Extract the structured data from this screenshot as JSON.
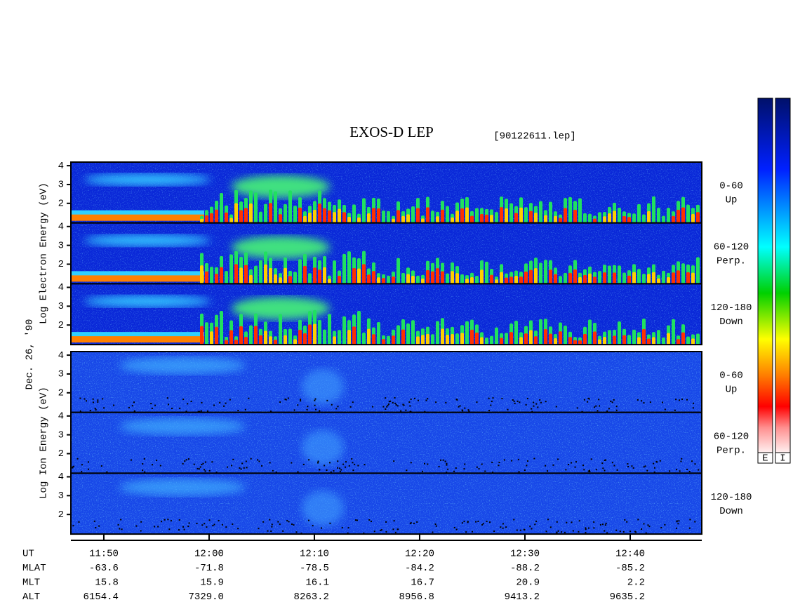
{
  "title": "EXOS-D LEP",
  "file": "[90122611.lep]",
  "date": "Dec. 26, '90",
  "chart_data": {
    "type": "spectrogram",
    "xlim": [
      706.87,
      766.8
    ],
    "xticks": [
      {
        "value": 710,
        "label": "11:50"
      },
      {
        "value": 720,
        "label": "12:00"
      },
      {
        "value": 730,
        "label": "12:10"
      },
      {
        "value": 740,
        "label": "12:20"
      },
      {
        "value": 750,
        "label": "12:30"
      },
      {
        "value": 760,
        "label": "12:40"
      }
    ],
    "ylim": [
      0.96,
      4.19
    ],
    "yticks": [
      2,
      3,
      4
    ],
    "groups": [
      {
        "y_label": "Log Electron Energy (eV)",
        "panels": [
          {
            "label_lines": [
              "0-60",
              "Up"
            ]
          },
          {
            "label_lines": [
              "60-120",
              "Perp."
            ]
          },
          {
            "label_lines": [
              "120-180",
              "Down"
            ]
          }
        ]
      },
      {
        "y_label": "Log Ion Energy (eV)",
        "panels": [
          {
            "label_lines": [
              "0-60",
              "Up"
            ]
          },
          {
            "label_lines": [
              "60-120",
              "Perp."
            ]
          },
          {
            "label_lines": [
              "120-180",
              "Down"
            ]
          }
        ]
      }
    ],
    "colorbars": [
      {
        "label": "E"
      },
      {
        "label": "I"
      }
    ]
  },
  "ephemeris": {
    "rows": [
      {
        "name": "UT"
      },
      {
        "name": "MLAT",
        "values": [
          "-63.6",
          "-71.8",
          "-78.5",
          "-84.2",
          "-88.2",
          "-85.2"
        ]
      },
      {
        "name": "MLT",
        "values": [
          "15.8",
          "15.9",
          "16.1",
          "16.7",
          "20.9",
          "2.2"
        ]
      },
      {
        "name": "ALT",
        "values": [
          "6154.4",
          "7329.0",
          "8263.2",
          "8956.8",
          "9413.2",
          "9635.2"
        ]
      }
    ]
  }
}
